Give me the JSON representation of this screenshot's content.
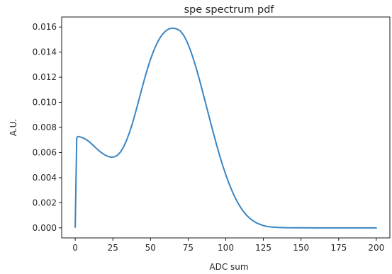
{
  "chart_data": {
    "type": "line",
    "title": "spe spectrum pdf",
    "xlabel": "ADC sum",
    "ylabel": "A.U.",
    "xlim": [
      -9,
      209
    ],
    "ylim": [
      -0.0008,
      0.0168
    ],
    "xticks": [
      0,
      25,
      50,
      75,
      100,
      125,
      150,
      175,
      200
    ],
    "yticks": [
      0.0,
      0.002,
      0.004,
      0.006,
      0.008,
      0.01,
      0.012,
      0.014,
      0.016
    ],
    "ytick_labels": [
      "0.000",
      "0.002",
      "0.004",
      "0.006",
      "0.008",
      "0.010",
      "0.012",
      "0.014",
      "0.016"
    ],
    "grid": false,
    "line_color": "#3a85c2",
    "series": [
      {
        "x": [
          0,
          1,
          2,
          4,
          6,
          8,
          10,
          12,
          14,
          16,
          18,
          20,
          22,
          24,
          26,
          28,
          30,
          32,
          34,
          36,
          38,
          40,
          42,
          44,
          46,
          48,
          50,
          52,
          54,
          56,
          58,
          60,
          62,
          64,
          66,
          68,
          69,
          70,
          72,
          74,
          76,
          78,
          80,
          82,
          84,
          86,
          88,
          90,
          92,
          94,
          96,
          98,
          100,
          102,
          104,
          106,
          108,
          110,
          112,
          114,
          116,
          118,
          120,
          122,
          124,
          126,
          128,
          130,
          135,
          140,
          145,
          150,
          160,
          170,
          180,
          190,
          200
        ],
        "y": [
          5e-05,
          0.0072,
          0.00728,
          0.00722,
          0.00712,
          0.00698,
          0.00679,
          0.00657,
          0.00634,
          0.00612,
          0.00594,
          0.00579,
          0.00568,
          0.00563,
          0.00566,
          0.00578,
          0.00603,
          0.00642,
          0.00694,
          0.00758,
          0.00833,
          0.00917,
          0.01006,
          0.01097,
          0.01185,
          0.01268,
          0.01343,
          0.01408,
          0.01463,
          0.01508,
          0.01543,
          0.01568,
          0.01584,
          0.01591,
          0.0159,
          0.01581,
          0.01575,
          0.01566,
          0.01535,
          0.0149,
          0.01432,
          0.01364,
          0.01287,
          0.01203,
          0.01114,
          0.01022,
          0.00929,
          0.00836,
          0.00745,
          0.00657,
          0.00574,
          0.00496,
          0.00424,
          0.00358,
          0.00299,
          0.00246,
          0.002,
          0.0016,
          0.00126,
          0.00098,
          0.00075,
          0.00057,
          0.00042,
          0.00031,
          0.00022,
          0.00015,
          0.0001,
          7e-05,
          3e-05,
          1e-05,
          5e-06,
          2e-06,
          0.0,
          0.0,
          0.0,
          0.0,
          0.0
        ]
      }
    ]
  }
}
